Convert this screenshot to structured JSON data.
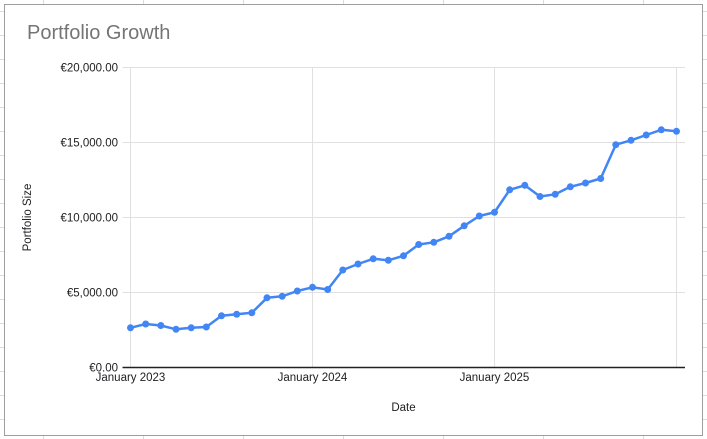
{
  "window": {
    "kind": "spreadsheet-embedded-chart"
  },
  "chart": {
    "title": "Portfolio Growth",
    "x_axis_title": "Date",
    "y_axis_title": "Portfolio Size",
    "y_tick_labels": [
      "€0.00",
      "€5,000.00",
      "€10,000.00",
      "€15,000.00",
      "€20,000.00"
    ],
    "x_tick_labels": [
      "January 2023",
      "January 2024",
      "January 2025"
    ],
    "colors": {
      "series_line": "#4285f4",
      "gridline": "#e0e0e0",
      "axis_line": "#212121",
      "title_text": "#757575",
      "tick_text": "#202124",
      "chart_border": "#9e9e9e",
      "sheet_gridline": "#dadce0"
    }
  },
  "chart_data": {
    "type": "line",
    "title": "Portfolio Growth",
    "xlabel": "Date",
    "ylabel": "Portfolio Size",
    "x": [
      "Jan 2023",
      "Feb 2023",
      "Mar 2023",
      "Apr 2023",
      "May 2023",
      "Jun 2023",
      "Jul 2023",
      "Aug 2023",
      "Sep 2023",
      "Oct 2023",
      "Nov 2023",
      "Dec 2023",
      "Jan 2024",
      "Feb 2024",
      "Mar 2024",
      "Apr 2024",
      "May 2024",
      "Jun 2024",
      "Jul 2024",
      "Aug 2024",
      "Sep 2024",
      "Oct 2024",
      "Nov 2024",
      "Dec 2024",
      "Jan 2025",
      "Feb 2025",
      "Mar 2025",
      "Apr 2025",
      "May 2025",
      "Jun 2025",
      "Jul 2025",
      "Aug 2025",
      "Sep 2025",
      "Oct 2025",
      "Nov 2025",
      "Dec 2025",
      "Jan 2026"
    ],
    "values": [
      2650,
      2900,
      2800,
      2550,
      2650,
      2700,
      3450,
      3550,
      3650,
      4650,
      4750,
      5100,
      5350,
      5200,
      6500,
      6900,
      7250,
      7150,
      7450,
      8200,
      8350,
      8750,
      9450,
      10100,
      10350,
      11850,
      12150,
      11400,
      11550,
      12050,
      12300,
      12600,
      14850,
      15150,
      15500,
      15850,
      15750
    ],
    "ylim": [
      0,
      20000
    ],
    "y_tick_step": 5000,
    "x_gridlines_at": [
      "Jan 2023",
      "Jan 2024",
      "Jan 2025",
      "Jan 2026"
    ],
    "currency_symbol": "€",
    "grid": true,
    "legend": false,
    "point_markers": true
  }
}
